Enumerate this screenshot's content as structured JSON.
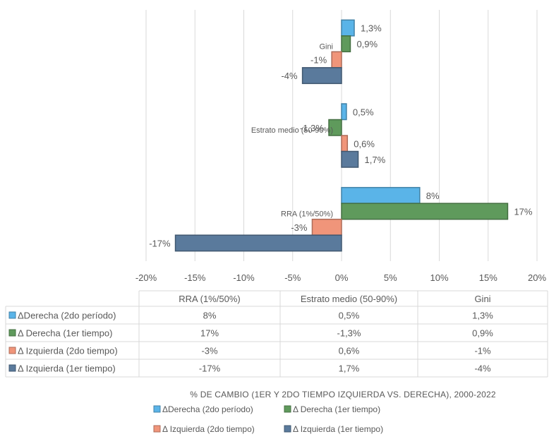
{
  "chart_data": {
    "type": "bar",
    "orientation": "horizontal",
    "title": "% DE CAMBIO (1ER Y 2DO TIEMPO IZQUIERDA VS. DERECHA), 2000-2022",
    "categories": [
      "RRA (1%/50%)",
      "Estrato medio (50-90%)",
      "Gini"
    ],
    "xlim": [
      -20,
      20
    ],
    "x_ticks": [
      "-20%",
      "-15%",
      "-10%",
      "-5%",
      "0%",
      "5%",
      "10%",
      "15%",
      "20%"
    ],
    "grid": true,
    "legend_position": "bottom",
    "series": [
      {
        "name": "ΔDerecha (2do período)",
        "values": [
          8,
          0.5,
          1.3
        ],
        "labels": [
          "8%",
          "0,5%",
          "1,3%"
        ],
        "color": "#5ab4e8"
      },
      {
        "name": "Δ Derecha (1er tiempo)",
        "values": [
          17,
          -1.3,
          0.9
        ],
        "labels": [
          "17%",
          "-1,3%",
          "0,9%"
        ],
        "color": "#5f9a5c"
      },
      {
        "name": "Δ Izquierda (2do tiempo)",
        "values": [
          -3,
          0.6,
          -1
        ],
        "labels": [
          "-3%",
          "0,6%",
          "-1%"
        ],
        "color": "#f0957a"
      },
      {
        "name": "Δ Izquierda (1er tiempo)",
        "values": [
          -17,
          1.7,
          -4
        ],
        "labels": [
          "-17%",
          "1,7%",
          "-4%"
        ],
        "color": "#5a7a9c"
      }
    ]
  }
}
